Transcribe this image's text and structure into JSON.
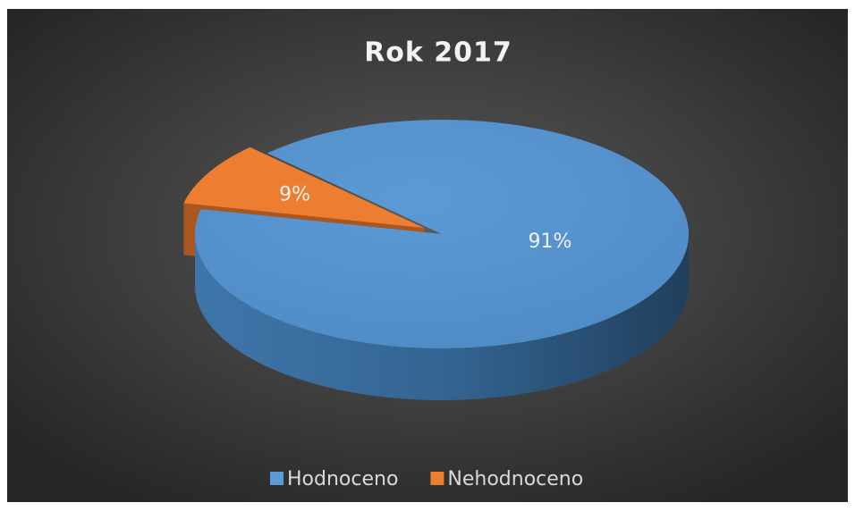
{
  "chart_data": {
    "type": "pie",
    "title": "Rok 2017",
    "categories": [
      "Hodnoceno",
      "Nehodnoceno"
    ],
    "values": [
      91,
      9
    ],
    "value_labels": [
      "91%",
      "9%"
    ],
    "colors": [
      "#5b9bd5",
      "#ed7d31"
    ],
    "legend": "bottom"
  }
}
